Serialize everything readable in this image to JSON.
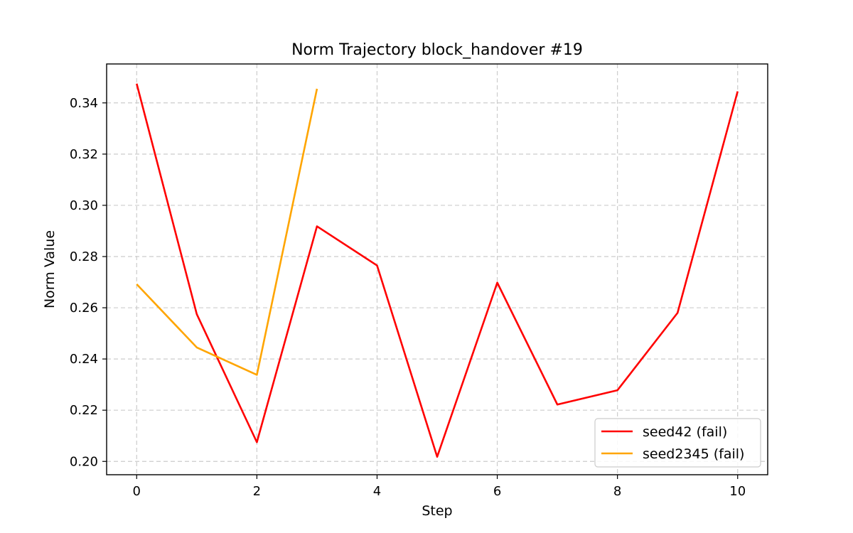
{
  "chart_data": {
    "type": "line",
    "title": "Norm Trajectory block_handover #19",
    "xlabel": "Step",
    "ylabel": "Norm Value",
    "xlim": [
      -0.5,
      10.5
    ],
    "ylim": [
      0.1948,
      0.3552
    ],
    "xticks": [
      0,
      2,
      4,
      6,
      8,
      10
    ],
    "yticks": [
      0.2,
      0.22,
      0.24,
      0.26,
      0.28,
      0.3,
      0.32,
      0.34
    ],
    "ytick_labels": [
      "0.20",
      "0.22",
      "0.24",
      "0.26",
      "0.28",
      "0.30",
      "0.32",
      "0.34"
    ],
    "grid": true,
    "legend_position": "lower-right",
    "series": [
      {
        "name": "seed42 (fail)",
        "color": "#ff0000",
        "x": [
          0,
          1,
          2,
          3,
          4,
          5,
          6,
          7,
          8,
          9,
          10
        ],
        "values": [
          0.3475,
          0.2575,
          0.2075,
          0.2918,
          0.2765,
          0.2018,
          0.2698,
          0.2222,
          0.2278,
          0.258,
          0.3445
        ]
      },
      {
        "name": "seed2345 (fail)",
        "color": "#ffa500",
        "x": [
          0,
          1,
          2,
          3
        ],
        "values": [
          0.2692,
          0.2445,
          0.2338,
          0.3455
        ]
      }
    ]
  }
}
